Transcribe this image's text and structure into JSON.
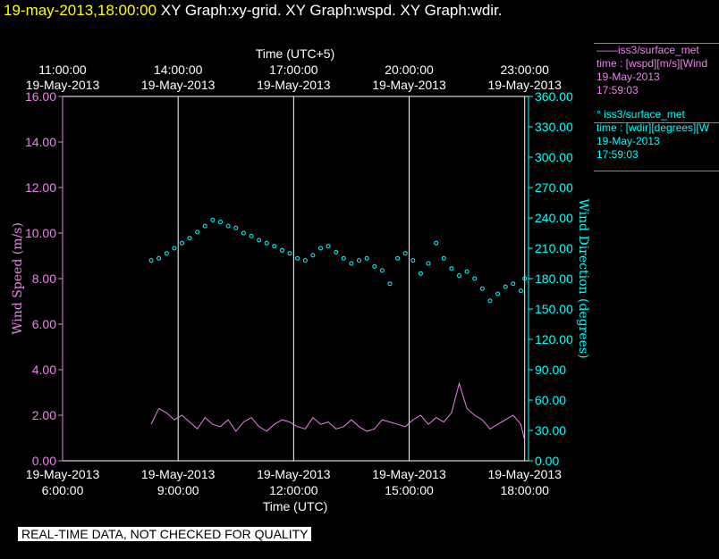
{
  "header": {
    "date_text": "19-may-2013,18:00:00",
    "graph_text": " XY Graph:xy-grid.  XY Graph:wspd.  XY Graph:wdir."
  },
  "footer": {
    "quality_note": "REAL-TIME DATA, NOT CHECKED FOR QUALITY"
  },
  "legend": [
    {
      "name": "——iss3/surface_met",
      "var": "time : [wspd][m/s][Wind",
      "date": "19-May-2013",
      "time": "17:59:03",
      "color": "#ee82ee"
    },
    {
      "name": "° iss3/surface_met",
      "var": "time : [wdir][degrees][W",
      "date": "19-May-2013",
      "time": "17:59:03",
      "color": "#00ffff"
    }
  ],
  "chart_data": {
    "type": "line",
    "xlabel": "Time (UTC)",
    "x2label": "Time (UTC+5)",
    "ylabel": "Wind Speed (m/s)",
    "y2label": "Wind Direction (degrees)",
    "xlim_hours": [
      6,
      18.1
    ],
    "ylim": [
      0,
      16
    ],
    "y2lim": [
      0,
      360
    ],
    "grid": "vertical",
    "x_ticks": [
      {
        "hour": 6,
        "line1": "19-May-2013",
        "line2": "6:00:00"
      },
      {
        "hour": 9,
        "line1": "19-May-2013",
        "line2": "9:00:00"
      },
      {
        "hour": 12,
        "line1": "19-May-2013",
        "line2": "12:00:00"
      },
      {
        "hour": 15,
        "line1": "19-May-2013",
        "line2": "15:00:00"
      },
      {
        "hour": 18,
        "line1": "19-May-2013",
        "line2": "18:00:00"
      }
    ],
    "x2_ticks": [
      {
        "hour": 6,
        "line1": "11:00:00",
        "line2": "19-May-2013"
      },
      {
        "hour": 9,
        "line1": "14:00:00",
        "line2": "19-May-2013"
      },
      {
        "hour": 12,
        "line1": "17:00:00",
        "line2": "19-May-2013"
      },
      {
        "hour": 15,
        "line1": "20:00:00",
        "line2": "19-May-2013"
      },
      {
        "hour": 18,
        "line1": "23:00:00",
        "line2": "19-May-2013"
      }
    ],
    "y_ticks": [
      "0.00",
      "2.00",
      "4.00",
      "6.00",
      "8.00",
      "10.00",
      "12.00",
      "14.00",
      "16.00"
    ],
    "y2_ticks": [
      "0.00",
      "30.00",
      "60.00",
      "90.00",
      "120.00",
      "150.00",
      "180.00",
      "210.00",
      "240.00",
      "270.00",
      "300.00",
      "330.00",
      "360.00"
    ],
    "series": [
      {
        "name": "iss3/surface_met wspd",
        "kind": "line",
        "color": "#ee82ee",
        "axis": "left",
        "x": [
          8.3,
          8.5,
          8.7,
          8.9,
          9.1,
          9.3,
          9.5,
          9.7,
          9.9,
          10.1,
          10.3,
          10.5,
          10.7,
          10.9,
          11.1,
          11.3,
          11.5,
          11.7,
          11.9,
          12.1,
          12.3,
          12.5,
          12.7,
          12.9,
          13.1,
          13.3,
          13.5,
          13.7,
          13.9,
          14.1,
          14.3,
          14.5,
          14.7,
          14.9,
          15.1,
          15.3,
          15.5,
          15.7,
          15.9,
          16.1,
          16.3,
          16.5,
          16.7,
          16.9,
          17.1,
          17.3,
          17.5,
          17.7,
          17.9,
          18.0
        ],
        "values": [
          1.6,
          2.3,
          2.1,
          1.8,
          2.0,
          1.7,
          1.4,
          1.9,
          1.6,
          1.5,
          1.8,
          1.3,
          1.7,
          1.9,
          1.5,
          1.3,
          1.6,
          1.8,
          1.7,
          1.5,
          1.4,
          1.9,
          1.6,
          1.7,
          1.4,
          1.5,
          1.8,
          1.5,
          1.3,
          1.4,
          1.8,
          1.7,
          1.6,
          1.5,
          1.8,
          2.0,
          1.6,
          1.9,
          1.7,
          2.1,
          3.4,
          2.3,
          2.0,
          1.8,
          1.4,
          1.6,
          1.8,
          2.0,
          1.6,
          0.9
        ]
      },
      {
        "name": "iss3/surface_met wdir",
        "kind": "scatter",
        "color": "#00ffff",
        "axis": "right",
        "x": [
          8.3,
          8.5,
          8.7,
          8.9,
          9.1,
          9.3,
          9.5,
          9.7,
          9.9,
          10.1,
          10.3,
          10.5,
          10.7,
          10.9,
          11.1,
          11.3,
          11.5,
          11.7,
          11.9,
          12.1,
          12.3,
          12.5,
          12.7,
          12.9,
          13.1,
          13.3,
          13.5,
          13.7,
          13.9,
          14.1,
          14.3,
          14.5,
          14.7,
          14.9,
          15.1,
          15.3,
          15.5,
          15.7,
          15.9,
          16.1,
          16.3,
          16.5,
          16.7,
          16.9,
          17.1,
          17.3,
          17.5,
          17.7,
          17.9,
          18.0
        ],
        "values": [
          198,
          200,
          205,
          210,
          215,
          220,
          226,
          232,
          238,
          236,
          232,
          230,
          225,
          222,
          218,
          215,
          212,
          208,
          205,
          200,
          198,
          203,
          210,
          212,
          206,
          200,
          195,
          198,
          200,
          192,
          188,
          175,
          200,
          205,
          198,
          185,
          195,
          215,
          200,
          190,
          183,
          187,
          180,
          170,
          158,
          165,
          172,
          175,
          168,
          180
        ]
      }
    ]
  }
}
